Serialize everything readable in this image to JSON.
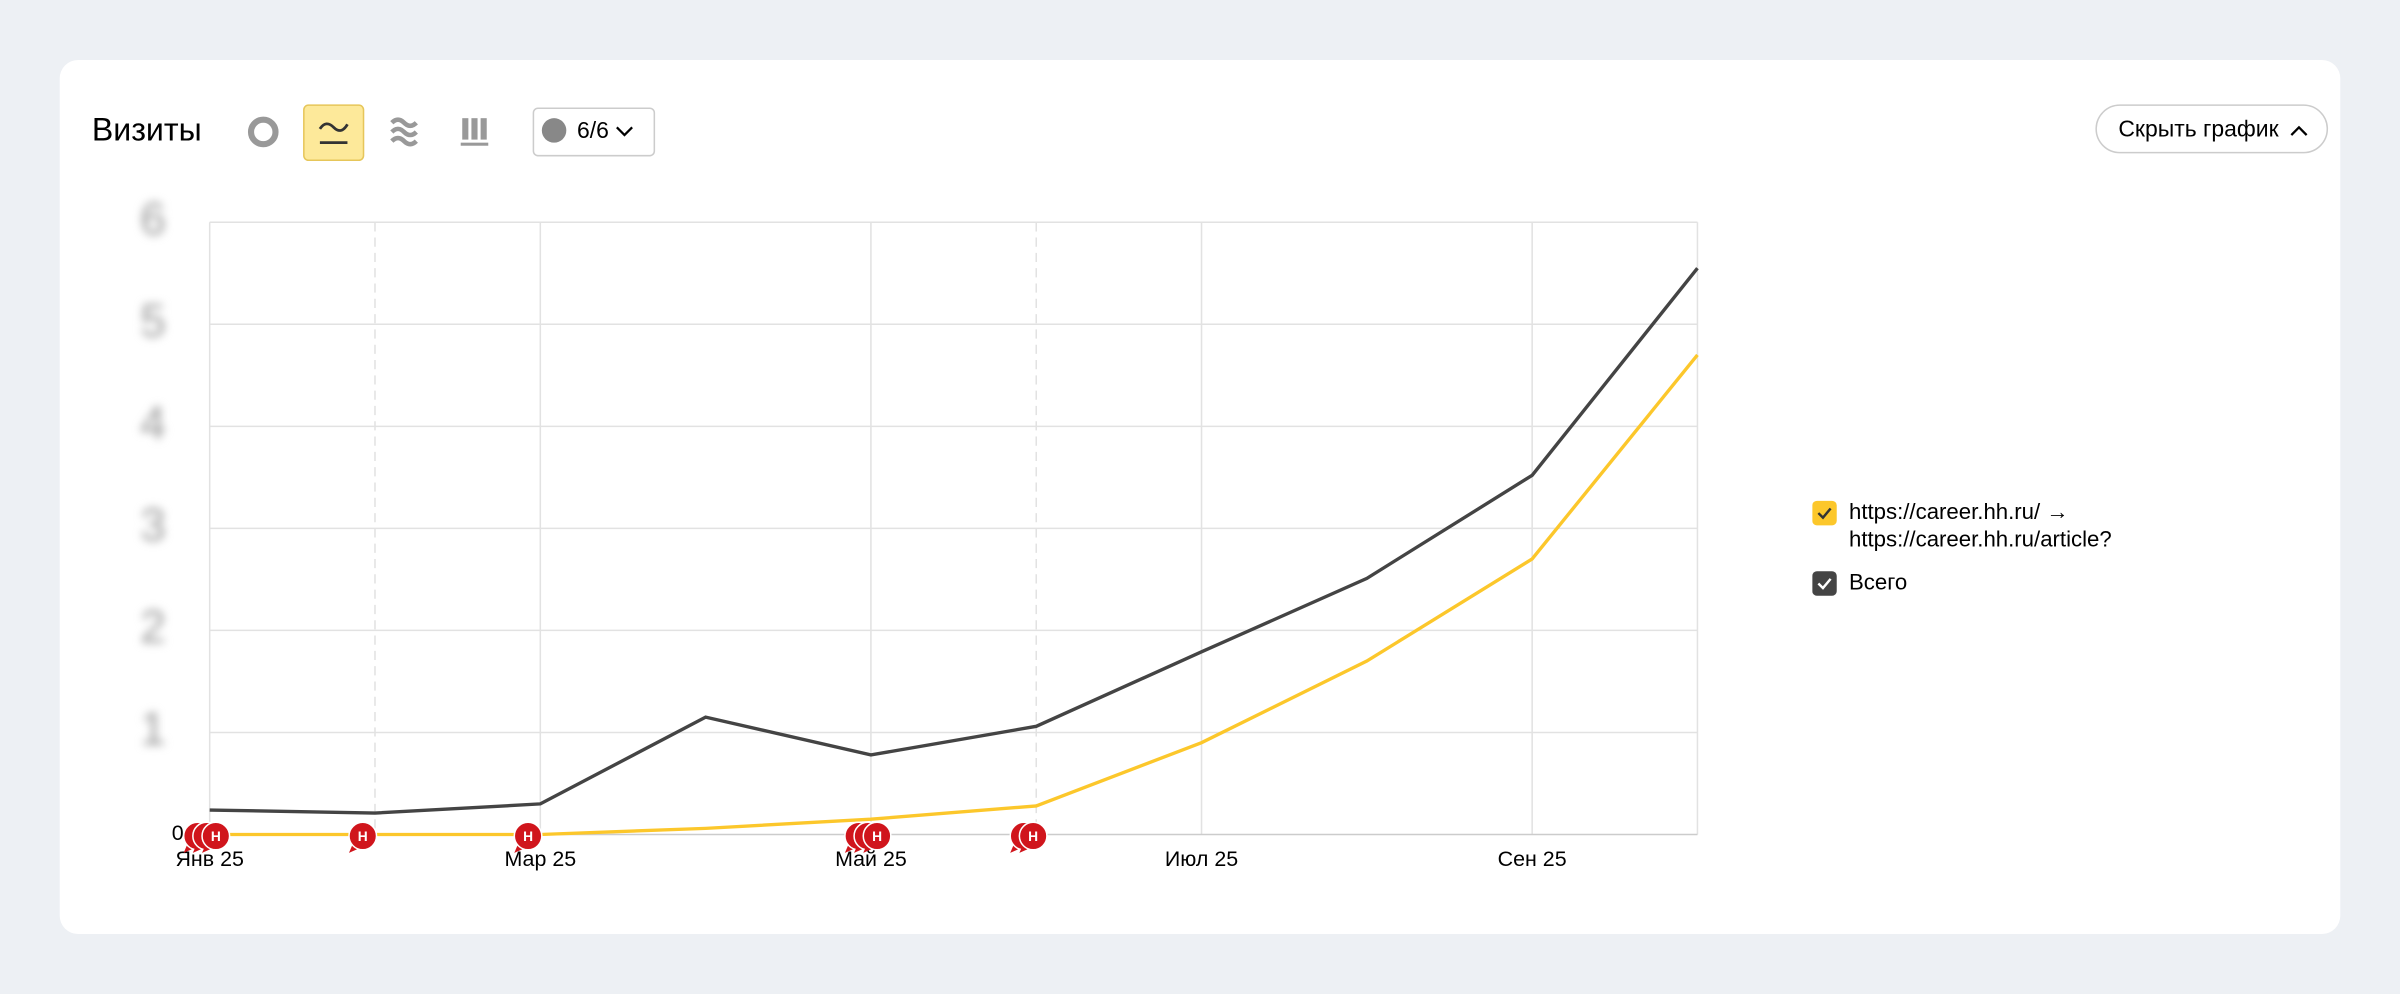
{
  "header": {
    "title": "Визиты",
    "comments_button": "6/6",
    "hide_button": "Скрыть график"
  },
  "chart_data": {
    "type": "line",
    "categories": [
      "Янв 25",
      null,
      "Мар 25",
      null,
      "Май 25",
      null,
      "Июл 25",
      null,
      "Сен 25",
      null
    ],
    "series": [
      {
        "name": "https://career.hh.ru/ → https://career.hh.ru/article?",
        "color": "#fcc72b",
        "values": [
          0,
          0,
          0,
          0.06,
          0.15,
          0.28,
          0.9,
          1.7,
          2.7,
          4.7
        ]
      },
      {
        "name": "Всего",
        "color": "#444444",
        "values": [
          0.24,
          0.21,
          0.3,
          1.15,
          0.78,
          1.06,
          1.79,
          2.51,
          3.52,
          5.55
        ]
      }
    ],
    "ylim": [
      0,
      6
    ],
    "yticks": [
      0,
      1,
      2,
      3,
      4,
      5,
      6
    ],
    "grid": true,
    "comment_markers": {
      "label": "Н",
      "positions": [
        0,
        0,
        0,
        1,
        2,
        4,
        4,
        4,
        5,
        5
      ]
    },
    "legend": "right"
  }
}
